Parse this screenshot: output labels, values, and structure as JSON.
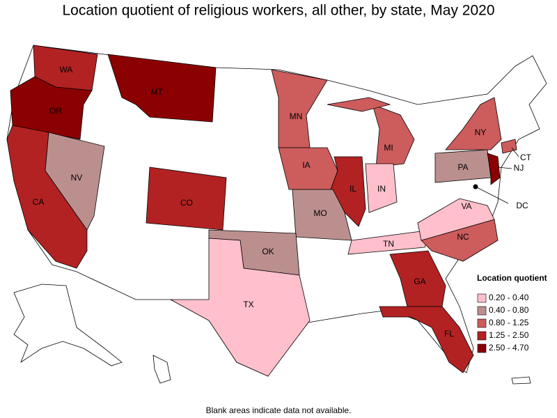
{
  "title": "Location quotient of religious workers, all other, by state, May 2020",
  "states": [
    {
      "label": "WA",
      "color": "#b22222"
    },
    {
      "label": "OR",
      "color": "#8b0000"
    },
    {
      "label": "CA",
      "color": "#b22222"
    },
    {
      "label": "NV",
      "color": "#bc8f8f"
    },
    {
      "label": "MT",
      "color": "#8b0000"
    },
    {
      "label": "CO",
      "color": "#b22222"
    },
    {
      "label": "MN",
      "color": "#cd5c5c"
    },
    {
      "label": "IA",
      "color": "#cd5c5c"
    },
    {
      "label": "MI",
      "color": "#cd5c5c"
    },
    {
      "label": "IL",
      "color": "#b22222"
    },
    {
      "label": "IN",
      "color": "#ffc0cb"
    },
    {
      "label": "MO",
      "color": "#bc8f8f"
    },
    {
      "label": "OK",
      "color": "#bc8f8f"
    },
    {
      "label": "TX",
      "color": "#ffc0cb"
    },
    {
      "label": "GA",
      "color": "#b22222"
    },
    {
      "label": "FL",
      "color": "#b22222"
    },
    {
      "label": "TN",
      "color": "#ffc0cb"
    },
    {
      "label": "NC",
      "color": "#cd5c5c"
    },
    {
      "label": "VA",
      "color": "#ffc0cb"
    },
    {
      "label": "PA",
      "color": "#bc8f8f"
    },
    {
      "label": "NY",
      "color": "#cd5c5c"
    },
    {
      "label": "NJ",
      "color": "#8b0000"
    },
    {
      "label": "CT",
      "color": "#cd5c5c"
    },
    {
      "label": "DC",
      "color": "#000000"
    }
  ],
  "legend": {
    "title": "Location quotient",
    "items": [
      {
        "label": "0.20 - 0.40",
        "color": "#ffc0cb"
      },
      {
        "label": "0.40 - 0.80",
        "color": "#bc8f8f"
      },
      {
        "label": "0.80 - 1.25",
        "color": "#cd5c5c"
      },
      {
        "label": "1.25 - 2.50",
        "color": "#b22222"
      },
      {
        "label": "2.50 - 4.70",
        "color": "#8b0000"
      }
    ]
  },
  "footnote": "Blank areas indicate data not available."
}
